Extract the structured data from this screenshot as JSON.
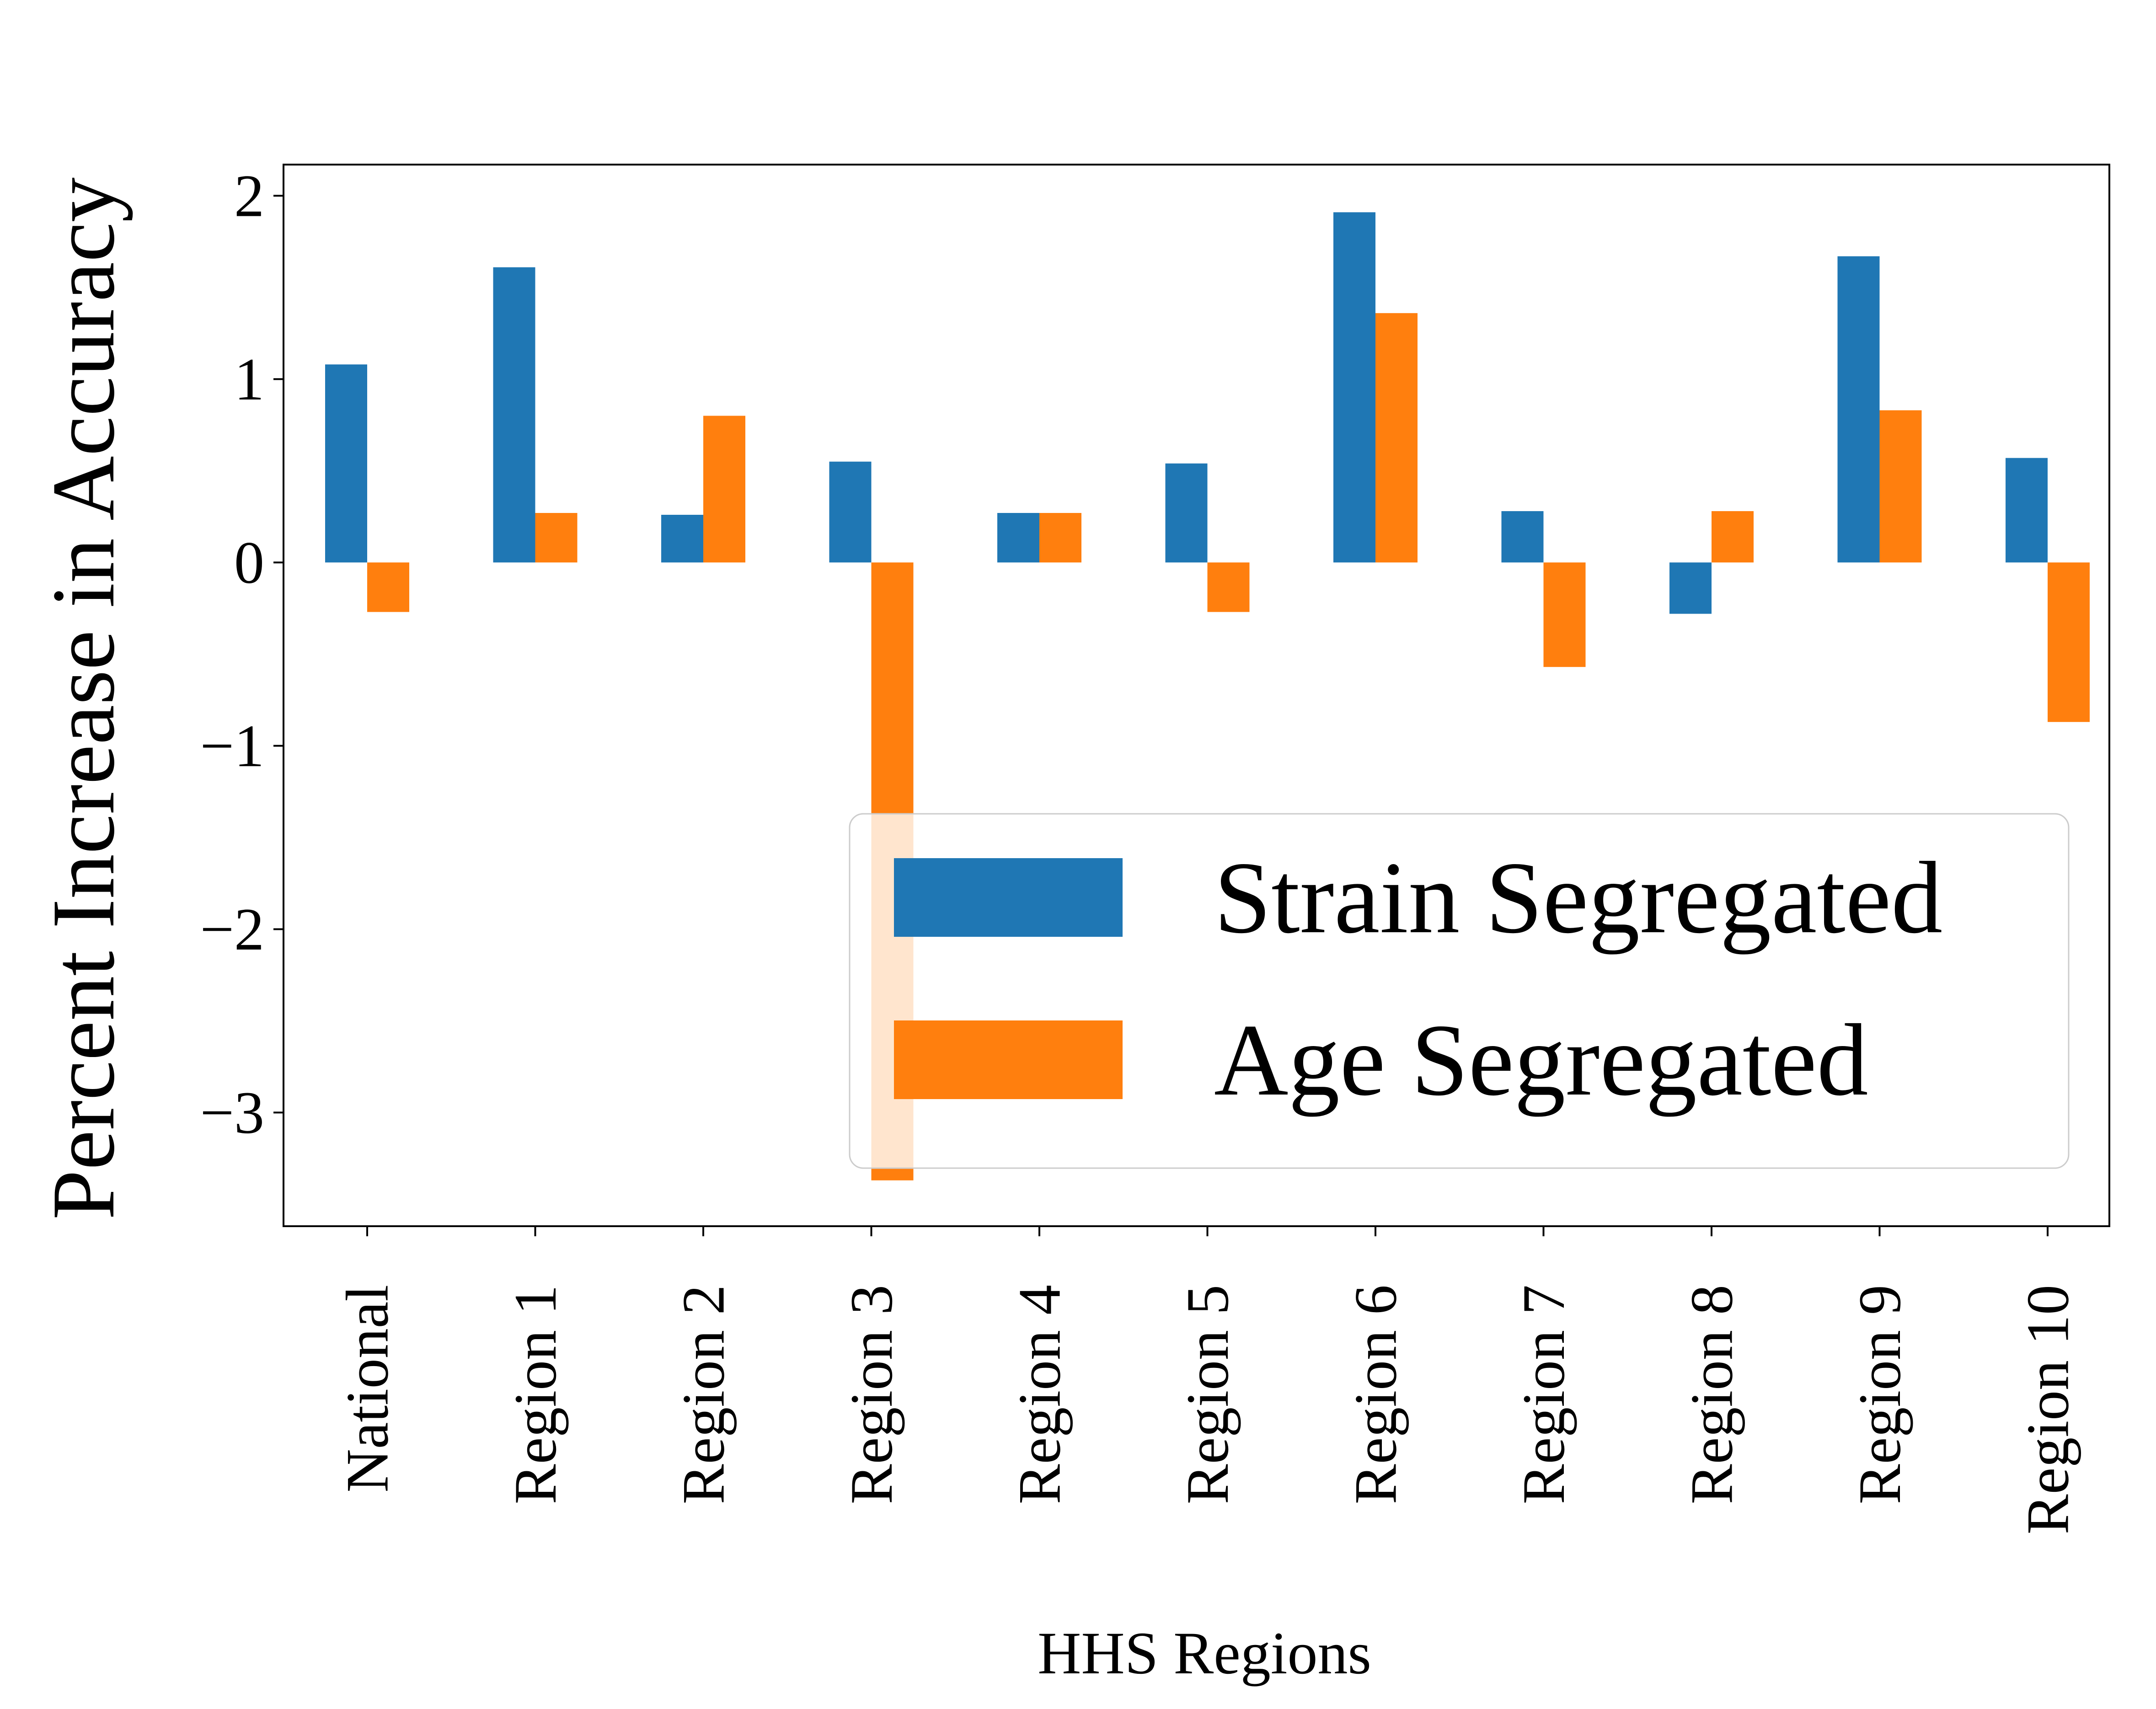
{
  "chart_data": {
    "type": "bar",
    "title": "",
    "xlabel": "HHS Regions",
    "ylabel": "Percent Increase in Accuracy",
    "categories": [
      "National",
      "Region 1",
      "Region 2",
      "Region 3",
      "Region 4",
      "Region 5",
      "Region 6",
      "Region 7",
      "Region 8",
      "Region 9",
      "Region 10"
    ],
    "series": [
      {
        "name": "Strain Segregated",
        "color": "#1f77b4",
        "values": [
          1.08,
          1.61,
          0.26,
          0.55,
          0.27,
          0.54,
          1.91,
          0.28,
          -0.28,
          1.67,
          0.57
        ]
      },
      {
        "name": "Age Segregated",
        "color": "#ff7f0e",
        "values": [
          -0.27,
          0.27,
          0.8,
          -3.37,
          0.27,
          -0.27,
          1.36,
          -0.57,
          0.28,
          0.83,
          -0.87
        ]
      }
    ],
    "ylim": [
      -3.62,
      2.17
    ],
    "yticks": [
      2,
      1,
      0,
      -1,
      -2,
      -3
    ],
    "ytick_labels": [
      "2",
      "1",
      "0",
      "−1",
      "−2",
      "−3"
    ],
    "grid": false,
    "legend_placement": "lower-right"
  }
}
